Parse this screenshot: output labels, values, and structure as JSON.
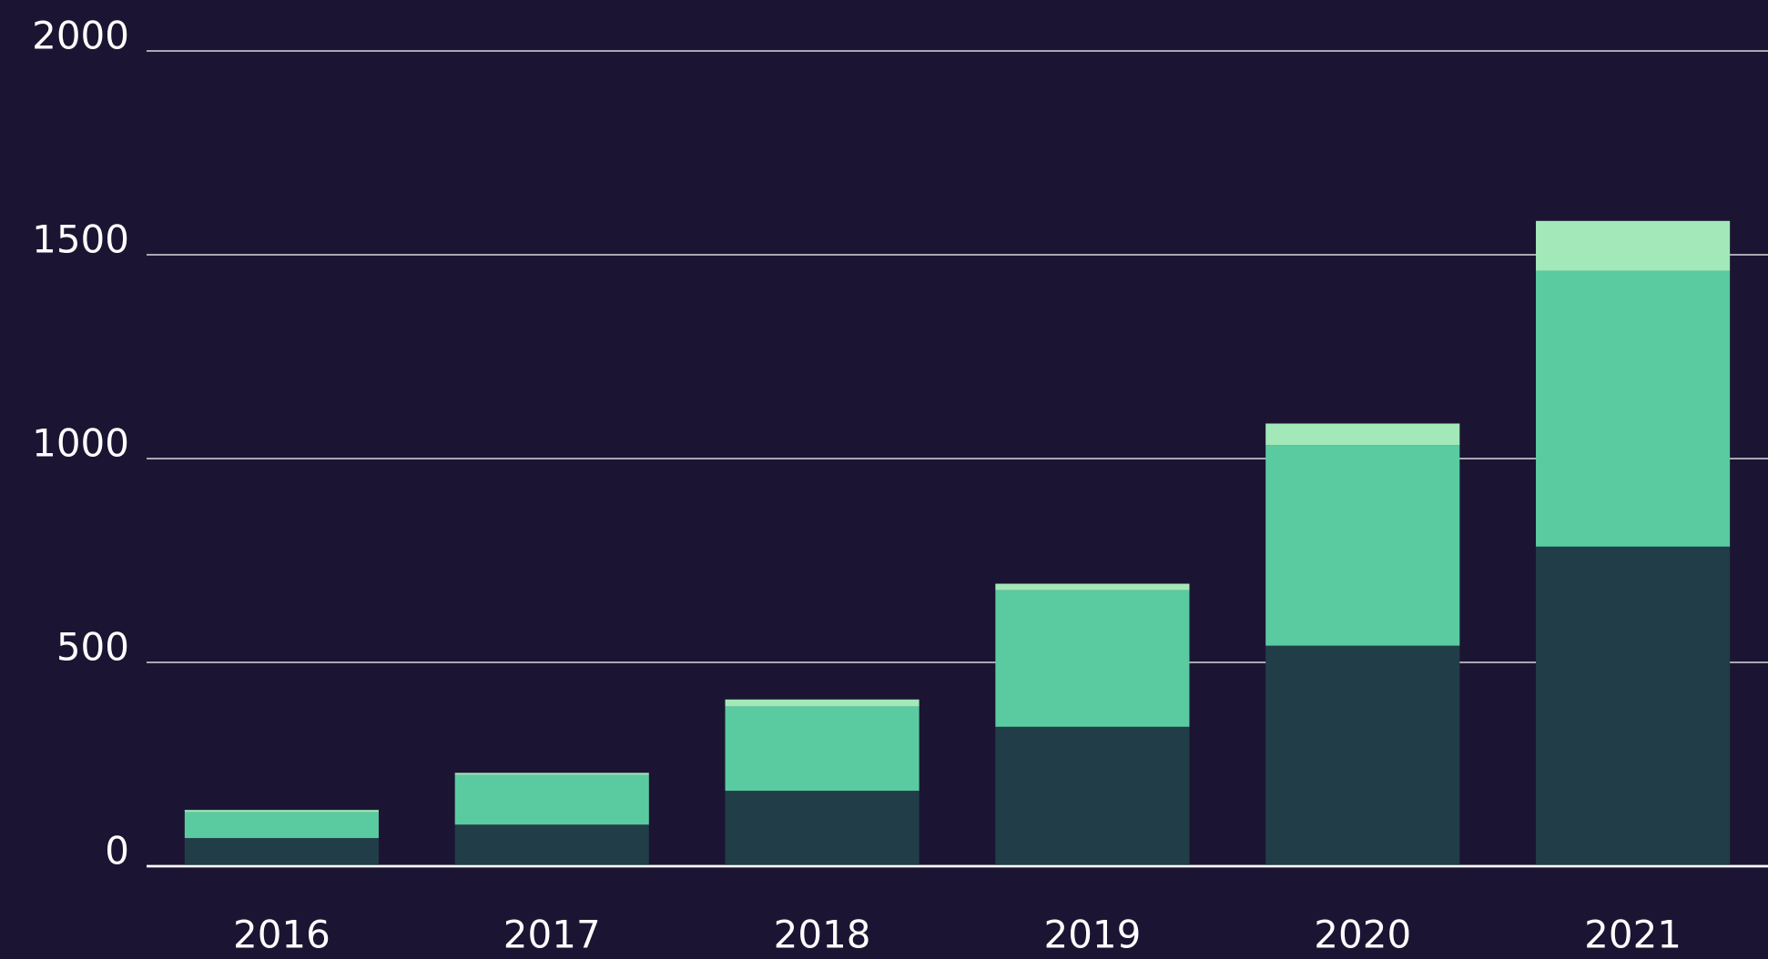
{
  "chart_data": {
    "type": "stacked_bar",
    "categories": [
      "2016",
      "2017",
      "2018",
      "2019",
      "2020",
      "2021"
    ],
    "series": [
      {
        "color": "#213d47",
        "values": [
          69,
          102,
          185,
          342,
          541,
          784
        ]
      },
      {
        "color": "#5acba0",
        "values": [
          64,
          122,
          207,
          335,
          492,
          677
        ]
      },
      {
        "color": "#a3e8b8",
        "values": [
          5,
          5,
          17,
          16,
          53,
          122
        ]
      }
    ],
    "ylim": [
      0,
      2000
    ],
    "yticks": [
      0,
      500,
      1000,
      1500,
      2000
    ],
    "grid": true
  }
}
